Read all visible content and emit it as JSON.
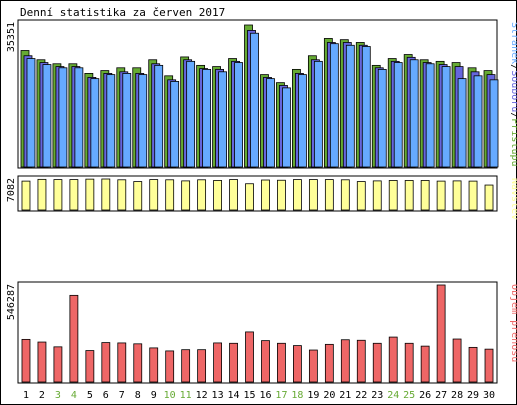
{
  "title": "Denní statistika za červen 2017",
  "colors": {
    "pristupu": "#66aa33",
    "souboru": "#6666dd",
    "stranek": "#66aaff",
    "navstev": "#ffff99",
    "prenos": "#ee6666",
    "weekend_label": "#66aa33",
    "text": "#000000"
  },
  "chart_data": [
    {
      "type": "bar",
      "categories": [
        "1",
        "2",
        "3",
        "4",
        "5",
        "6",
        "7",
        "8",
        "9",
        "10",
        "11",
        "12",
        "13",
        "14",
        "15",
        "16",
        "17",
        "18",
        "19",
        "20",
        "21",
        "22",
        "23",
        "24",
        "25",
        "26",
        "27",
        "28",
        "29",
        "30"
      ],
      "weekend_days": [
        "3",
        "4",
        "10",
        "11",
        "17",
        "18",
        "24",
        "25"
      ],
      "ymax_label": "35351",
      "legend": [
        "Stránek",
        "Souborů",
        "Přístupů"
      ],
      "legend_separator": " / ",
      "series": [
        {
          "name": "Přístupů",
          "color": "#66aa33",
          "values": [
            29000,
            26700,
            25700,
            25700,
            23300,
            24000,
            24700,
            24700,
            26700,
            22700,
            27400,
            25300,
            25000,
            27000,
            35351,
            23000,
            21000,
            24300,
            27700,
            32000,
            31700,
            31000,
            25300,
            27000,
            28000,
            26700,
            26300,
            26000,
            24700,
            24000
          ]
        },
        {
          "name": "Souborů",
          "color": "#6666dd",
          "values": [
            27700,
            26000,
            25000,
            25000,
            22300,
            23300,
            23700,
            23300,
            25700,
            21700,
            26700,
            24500,
            24300,
            26300,
            34000,
            22300,
            20300,
            23300,
            26700,
            31000,
            31000,
            30300,
            24700,
            26300,
            27300,
            26000,
            25500,
            25000,
            23700,
            23000
          ]
        },
        {
          "name": "Stránek",
          "color": "#66aaff",
          "values": [
            27000,
            25500,
            24700,
            24700,
            22000,
            23000,
            23300,
            23000,
            25300,
            21300,
            26300,
            24300,
            23700,
            26000,
            33300,
            22000,
            19700,
            23000,
            26300,
            30700,
            30300,
            30000,
            24300,
            26000,
            26700,
            25700,
            25000,
            22000,
            22700,
            21700
          ]
        }
      ]
    },
    {
      "type": "bar",
      "categories": [
        "1",
        "2",
        "3",
        "4",
        "5",
        "6",
        "7",
        "8",
        "9",
        "10",
        "11",
        "12",
        "13",
        "14",
        "15",
        "16",
        "17",
        "18",
        "19",
        "20",
        "21",
        "22",
        "23",
        "24",
        "25",
        "26",
        "27",
        "28",
        "29",
        "30"
      ],
      "ymax_label": "7082",
      "legend": [
        "Návštěv"
      ],
      "series": [
        {
          "name": "Návštěv",
          "color": "#ffff99",
          "values": [
            6600,
            7000,
            6950,
            6950,
            7050,
            7082,
            6900,
            6500,
            6950,
            6900,
            6650,
            6900,
            6750,
            6950,
            6000,
            6850,
            6800,
            6950,
            6950,
            6950,
            6900,
            6500,
            6650,
            6750,
            6750,
            6750,
            6600,
            6650,
            6600,
            5700
          ]
        }
      ]
    },
    {
      "type": "bar",
      "categories": [
        "1",
        "2",
        "3",
        "4",
        "5",
        "6",
        "7",
        "8",
        "9",
        "10",
        "11",
        "12",
        "13",
        "14",
        "15",
        "16",
        "17",
        "18",
        "19",
        "20",
        "21",
        "22",
        "23",
        "24",
        "25",
        "26",
        "27",
        "28",
        "29",
        "30"
      ],
      "ymax_label": "546287",
      "legend": [
        "Objem přenosu"
      ],
      "series": [
        {
          "name": "Objem přenosu",
          "color": "#ee6666",
          "values": [
            240000,
            225000,
            198000,
            488000,
            177000,
            222000,
            220000,
            215000,
            192000,
            175000,
            182000,
            182000,
            220000,
            218000,
            282000,
            233000,
            218000,
            205000,
            180000,
            212000,
            238000,
            235000,
            218000,
            253000,
            218000,
            202000,
            546287,
            242000,
            195000,
            185000
          ]
        }
      ]
    }
  ]
}
